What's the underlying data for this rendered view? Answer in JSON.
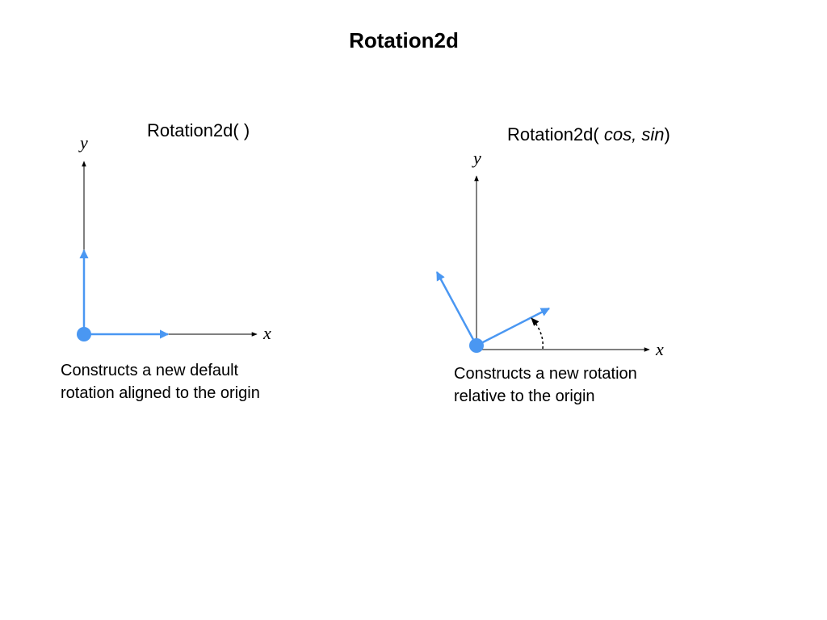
{
  "title": "Rotation2d",
  "colors": {
    "vector": "#4a97f2",
    "axis": "#000000",
    "background": "#ffffff"
  },
  "left_panel": {
    "heading": "Rotation2d( )",
    "x_label": "x",
    "y_label": "y",
    "caption_line1": "Constructs a new default",
    "caption_line2": "rotation aligned to the origin"
  },
  "right_panel": {
    "heading_prefix": "Rotation2d( ",
    "heading_cos": "cos,",
    "heading_sin": "sin",
    "heading_suffix": ")",
    "x_label": "x",
    "y_label": "y",
    "caption_line1": "Constructs a new rotation",
    "caption_line2": "relative to the origin"
  }
}
